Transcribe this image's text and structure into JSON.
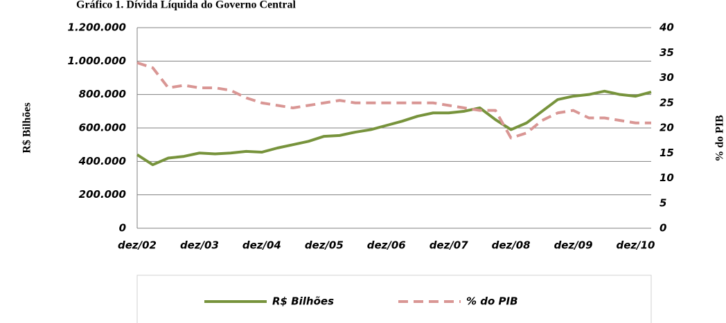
{
  "chart_data": {
    "type": "line",
    "title": "Gráfico 1. Dívida Líquida do Governo Central",
    "y_label": "R$ Bilhões",
    "y2_label": "% do PIB",
    "categories": [
      "dez/02",
      null,
      null,
      null,
      "dez/03",
      null,
      null,
      null,
      "dez/04",
      null,
      null,
      null,
      "dez/05",
      null,
      null,
      null,
      "dez/06",
      null,
      null,
      null,
      "dez/07",
      null,
      null,
      null,
      "dez/08",
      null,
      null,
      null,
      "dez/09",
      null,
      null,
      null,
      "dez/10",
      null
    ],
    "series": [
      {
        "name": "R$ Bilhões",
        "color": "#77933c",
        "dash": false,
        "values": [
          440000,
          380000,
          420000,
          430000,
          450000,
          445000,
          450000,
          460000,
          455000,
          480000,
          500000,
          520000,
          550000,
          555000,
          575000,
          590000,
          615000,
          640000,
          670000,
          690000,
          690000,
          700000,
          720000,
          650000,
          590000,
          630000,
          700000,
          770000,
          790000,
          800000,
          820000,
          800000,
          790000,
          815000
        ]
      },
      {
        "name": "% do PIB",
        "color": "#d99694",
        "dash": true,
        "axis": "y2",
        "values": [
          33,
          32,
          28,
          28.5,
          28,
          28,
          27.5,
          26,
          25,
          24.5,
          24,
          24.5,
          25,
          25.5,
          25,
          25,
          25,
          25,
          25,
          25,
          24.5,
          24,
          23.5,
          23.5,
          18,
          19,
          21.5,
          23,
          23.5,
          22,
          22,
          21.5,
          21,
          21
        ]
      }
    ],
    "ylim": [
      0,
      1200000
    ],
    "yticks": [
      0,
      {
        "value": 200000,
        "label": "200.000"
      },
      {
        "value": 400000,
        "label": "400.000"
      },
      {
        "value": 600000,
        "label": "600.000"
      },
      {
        "value": 800000,
        "label": "800.000"
      },
      {
        "value": 1000000,
        "label": "1.000.000"
      },
      {
        "value": 1200000,
        "label": "1.200.000"
      }
    ],
    "y2lim": [
      0,
      40
    ],
    "y2ticks": [
      0,
      5,
      10,
      15,
      20,
      25,
      30,
      35,
      40
    ],
    "grid": true
  }
}
